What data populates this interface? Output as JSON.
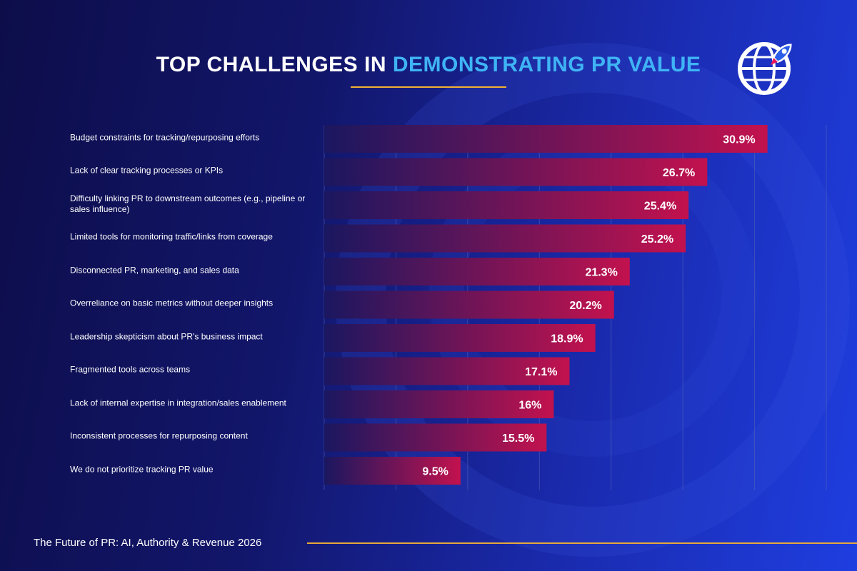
{
  "title": {
    "part1": "TOP CHALLENGES IN ",
    "part2": "DEMONSTRATING PR VALUE"
  },
  "logo_icon": "globe-rocket-icon",
  "footer": "The Future of PR: AI, Authority & Revenue 2026",
  "colors": {
    "title_accent": "#3fb4f5",
    "bar_start": "#1a1760",
    "bar_end": "#c2124e",
    "underline": "#f2b233",
    "gridline": "#5a66b8"
  },
  "chart_data": {
    "type": "bar",
    "orientation": "horizontal",
    "title": "TOP CHALLENGES IN DEMONSTRATING PR VALUE",
    "xlim": [
      0,
      35
    ],
    "grid": true,
    "categories": [
      "Budget constraints for tracking/repurposing efforts",
      "Lack of clear tracking processes or KPIs",
      "Difficulty linking PR to downstream outcomes (e.g., pipeline or sales influence)",
      "Limited tools for monitoring traffic/links from coverage",
      "Disconnected PR, marketing, and sales data",
      "Overreliance on basic metrics without deeper insights",
      "Leadership skepticism about PR's business impact",
      "Fragmented tools across teams",
      "Lack of internal expertise in integration/sales enablement",
      "Inconsistent processes for repurposing content",
      "We do not prioritize tracking PR value"
    ],
    "values": [
      30.9,
      26.7,
      25.4,
      25.2,
      21.3,
      20.2,
      18.9,
      17.1,
      16,
      15.5,
      9.5
    ],
    "labels": [
      "30.9%",
      "26.7%",
      "25.4%",
      "25.2%",
      "21.3%",
      "20.2%",
      "18.9%",
      "17.1%",
      "16%",
      "15.5%",
      "9.5%"
    ]
  }
}
